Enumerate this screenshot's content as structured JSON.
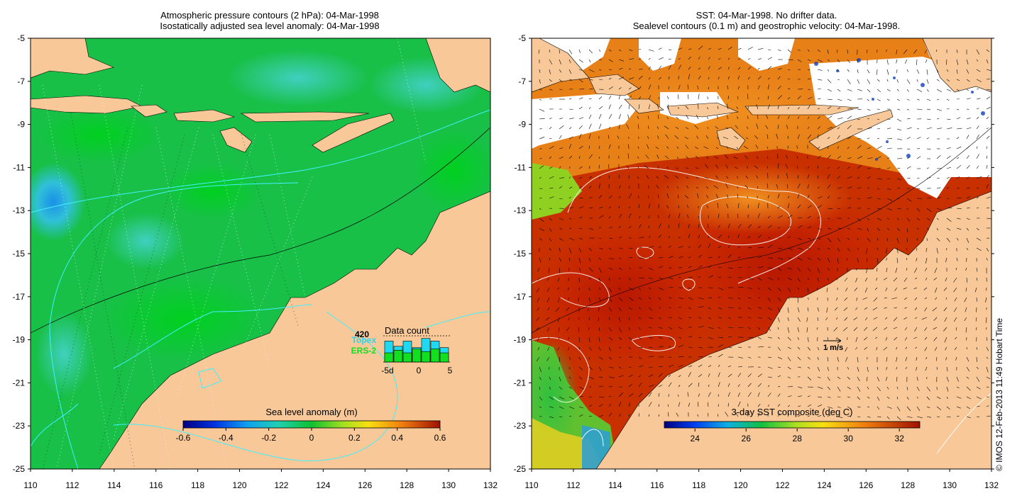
{
  "left_panel": {
    "title_line1": "Atmospheric pressure contours (2 hPa): 04-Mar-1998",
    "title_line2": "Isostatically adjusted sea level anomaly: 04-Mar-1998",
    "x_ticks": [
      "110",
      "112",
      "114",
      "116",
      "118",
      "120",
      "122",
      "124",
      "126",
      "128",
      "130",
      "132"
    ],
    "y_ticks": [
      "-5",
      "-7",
      "-9",
      "-11",
      "-13",
      "-15",
      "-17",
      "-19",
      "-21",
      "-23",
      "-25"
    ],
    "colorbar": {
      "title": "Sea level anomaly (m)",
      "tick_labels": [
        "-0.6",
        "-0.4",
        "-0.2",
        "0",
        "0.2",
        "0.4",
        "0.6"
      ],
      "range": [
        -0.6,
        0.6
      ]
    },
    "data_count": {
      "title": "Data count",
      "max_label": "420",
      "series": [
        "Topex",
        "ERS-2"
      ],
      "series_colors": {
        "Topex": "#20d8f0",
        "ERS-2": "#10e020"
      },
      "x_tick_labels": [
        "-5d",
        "0",
        "5"
      ],
      "topex": [
        0.8,
        0.6,
        0.8,
        0.55,
        0.9,
        0.8,
        0.55
      ],
      "ers2": [
        0.35,
        0.45,
        0.35,
        0.5,
        0.4,
        0.5,
        0.35
      ]
    }
  },
  "right_panel": {
    "title_line1": "SST: 04-Mar-1998. No drifter data.",
    "title_line2": "Sealevel contours (0.1 m) and geostrophic velocity: 04-Mar-1998.",
    "x_ticks": [
      "110",
      "112",
      "114",
      "116",
      "118",
      "120",
      "122",
      "124",
      "126",
      "128",
      "130",
      "132"
    ],
    "y_ticks": [
      "-5",
      "-7",
      "-9",
      "-11",
      "-13",
      "-15",
      "-17",
      "-19",
      "-21",
      "-23",
      "-25"
    ],
    "colorbar": {
      "title": "3-day SST composite (deg C)",
      "tick_labels": [
        "24",
        "26",
        "28",
        "30",
        "32"
      ],
      "range": [
        22.8,
        32.8
      ]
    },
    "velocity_scale_label": "1 m/s"
  },
  "credit": "© IMOS 12-Feb-2013 11:49 Hobart Time",
  "colors": {
    "land": "#f8c898",
    "ocean_green": "#18c040",
    "sst_dark_red": "#c02000",
    "sst_orange": "#e87010"
  }
}
